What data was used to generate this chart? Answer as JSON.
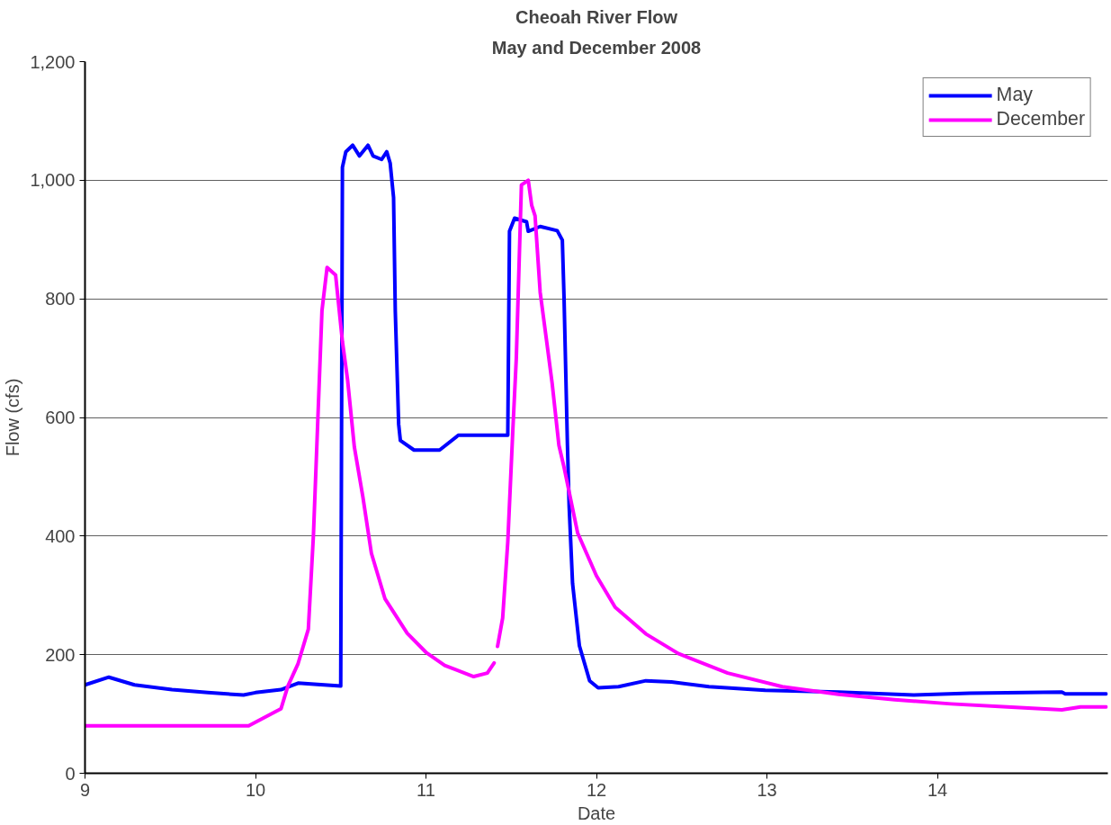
{
  "chart_data": {
    "type": "line",
    "title": "Cheoah River Flow",
    "subtitle": "May and December 2008",
    "xlabel": "Date",
    "ylabel": "Flow (cfs)",
    "xlim": [
      9,
      15
    ],
    "xticks": [
      9,
      10,
      11,
      12,
      13,
      14
    ],
    "ylim": [
      0,
      1200
    ],
    "yticks": [
      {
        "value": 0,
        "label": "0"
      },
      {
        "value": 200,
        "label": "200"
      },
      {
        "value": 400,
        "label": "400"
      },
      {
        "value": 600,
        "label": "600"
      },
      {
        "value": 800,
        "label": "800"
      },
      {
        "value": 1000,
        "label": "1,000"
      },
      {
        "value": 1200,
        "label": "1,200"
      }
    ],
    "grid": "y",
    "legend": "top right",
    "line_style": "solid",
    "marker": "none",
    "series": [
      {
        "name": "May",
        "color": "#0000ff",
        "x": [
          9.0,
          9.14,
          9.29,
          9.51,
          9.72,
          9.93,
          10.0,
          10.15,
          10.25,
          10.5,
          10.51,
          10.53,
          10.57,
          10.61,
          10.66,
          10.69,
          10.74,
          10.77,
          10.79,
          10.81,
          10.82,
          10.84,
          10.85,
          10.93,
          11.08,
          11.19,
          11.48,
          11.49,
          11.52,
          11.59,
          11.6,
          11.67,
          11.77,
          11.8,
          11.81,
          11.83,
          11.84,
          11.86,
          11.9,
          11.96,
          12.01,
          12.13,
          12.29,
          12.44,
          12.66,
          12.99,
          13.42,
          13.86,
          14.19,
          14.73,
          14.75,
          14.99
        ],
        "values": [
          149,
          162,
          149,
          141,
          136,
          132,
          136,
          141,
          152,
          147,
          1022,
          1048,
          1059,
          1041,
          1059,
          1041,
          1035,
          1048,
          1029,
          971,
          780,
          588,
          561,
          545,
          545,
          570,
          570,
          914,
          936,
          930,
          914,
          922,
          915,
          899,
          802,
          553,
          450,
          320,
          215,
          156,
          144,
          146,
          156,
          154,
          146,
          140,
          137,
          132,
          135,
          137,
          134,
          134
        ]
      },
      {
        "name": "December",
        "color": "#ff00ff",
        "x": [
          9.0,
          9.5,
          9.96,
          10.15,
          10.19,
          10.25,
          10.31,
          10.34,
          10.39,
          10.42,
          10.47,
          10.51,
          10.54,
          10.58,
          10.63,
          10.68,
          10.76,
          10.89,
          11.0,
          11.11,
          11.28,
          11.36,
          11.4,
          11.41,
          11.42,
          11.45,
          11.48,
          11.51,
          11.53,
          11.56,
          11.6,
          11.62,
          11.64,
          11.67,
          11.71,
          11.74,
          11.78,
          11.81,
          11.89,
          12.0,
          12.11,
          12.29,
          12.48,
          12.77,
          13.09,
          13.42,
          13.75,
          14.08,
          14.41,
          14.73,
          14.84,
          14.99
        ],
        "values": [
          80,
          80,
          80,
          109,
          147,
          185,
          243,
          402,
          780,
          853,
          840,
          728,
          664,
          550,
          466,
          371,
          294,
          236,
          204,
          182,
          163,
          169,
          186,
          null,
          214,
          262,
          390,
          581,
          700,
          992,
          1000,
          958,
          940,
          811,
          724,
          658,
          553,
          516,
          405,
          333,
          280,
          235,
          202,
          169,
          146,
          133,
          124,
          117,
          112,
          107,
          112,
          112
        ]
      }
    ]
  }
}
